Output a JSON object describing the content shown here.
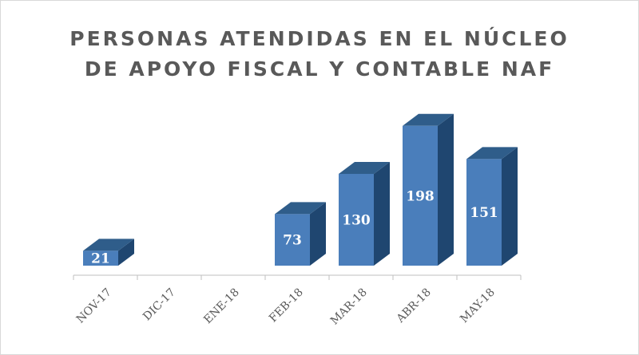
{
  "chart_data": {
    "type": "bar",
    "title_lines": [
      "PERSONAS ATENDIDAS EN EL NÚCLEO",
      "DE APOYO FISCAL Y CONTABLE NAF"
    ],
    "categories": [
      "NOV-17",
      "DIC-17",
      "ENE-18",
      "FEB-18",
      "MAR-18",
      "ABR-18",
      "MAY-18"
    ],
    "values": [
      21,
      null,
      null,
      73,
      130,
      198,
      151
    ],
    "data_labels": [
      "21",
      "",
      "",
      "73",
      "130",
      "198",
      "151"
    ],
    "xlabel": "",
    "ylabel": "",
    "ylim": [
      0,
      200
    ],
    "grid": false,
    "legend": "none",
    "three_d": true,
    "colors": {
      "bar_front": "#4a7ebb",
      "bar_top": "#2f5d8a",
      "bar_side": "#1f4670",
      "axis": "#bfbfbf",
      "text": "#595959"
    }
  }
}
